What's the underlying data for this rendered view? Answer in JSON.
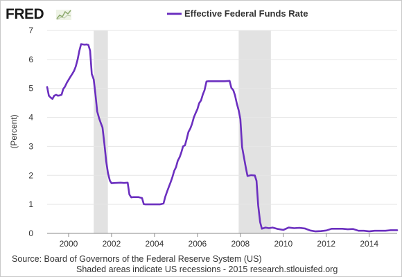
{
  "logo": {
    "text": "FRED",
    "icon": "line-chart-icon"
  },
  "legend": {
    "label": "Effective Federal Funds Rate",
    "color": "#6b2fbf"
  },
  "source_line1": "Source: Board of Governors of the Federal Reserve System (US)",
  "source_line2": "Shaded areas indicate US recessions - 2015 research.stlouisfed.org",
  "chart_data": {
    "type": "line",
    "title": "",
    "xlabel": "",
    "ylabel": "(Percent)",
    "xlim": [
      1999.0,
      2015.3
    ],
    "ylim": [
      0,
      7
    ],
    "x_ticks": [
      2000,
      2002,
      2004,
      2006,
      2008,
      2010,
      2012,
      2014
    ],
    "x_tick_labels": [
      "2000",
      "2002",
      "2004",
      "2006",
      "2008",
      "2010",
      "2012",
      "2014"
    ],
    "y_ticks": [
      0,
      1,
      2,
      3,
      4,
      5,
      6,
      7
    ],
    "y_tick_labels": [
      "0",
      "1",
      "2",
      "3",
      "4",
      "5",
      "6",
      "7"
    ],
    "grid": "horizontal",
    "legend_position": "top",
    "recessions": [
      [
        2001.17,
        2001.83
      ],
      [
        2007.92,
        2009.42
      ]
    ],
    "recession_color": "#e2e2e2",
    "series": [
      {
        "name": "Effective Federal Funds Rate",
        "color": "#6b2fbf",
        "x": [
          1999.0,
          1999.08,
          1999.17,
          1999.25,
          1999.33,
          1999.42,
          1999.5,
          1999.58,
          1999.67,
          1999.75,
          1999.83,
          1999.92,
          2000.0,
          2000.08,
          2000.17,
          2000.25,
          2000.33,
          2000.42,
          2000.5,
          2000.58,
          2000.67,
          2000.75,
          2000.83,
          2000.92,
          2001.0,
          2001.08,
          2001.17,
          2001.25,
          2001.33,
          2001.42,
          2001.5,
          2001.58,
          2001.67,
          2001.75,
          2001.83,
          2001.92,
          2002.0,
          2002.17,
          2002.42,
          2002.58,
          2002.75,
          2002.83,
          2002.92,
          2003.0,
          2003.25,
          2003.42,
          2003.5,
          2003.58,
          2003.75,
          2004.0,
          2004.25,
          2004.42,
          2004.5,
          2004.58,
          2004.67,
          2004.75,
          2004.83,
          2004.92,
          2005.0,
          2005.08,
          2005.17,
          2005.25,
          2005.33,
          2005.42,
          2005.5,
          2005.58,
          2005.67,
          2005.75,
          2005.83,
          2005.92,
          2006.0,
          2006.08,
          2006.17,
          2006.25,
          2006.33,
          2006.42,
          2006.5,
          2006.75,
          2007.0,
          2007.25,
          2007.5,
          2007.58,
          2007.67,
          2007.75,
          2007.83,
          2007.92,
          2008.0,
          2008.08,
          2008.17,
          2008.25,
          2008.33,
          2008.5,
          2008.67,
          2008.75,
          2008.83,
          2008.92,
          2009.0,
          2009.17,
          2009.33,
          2009.5,
          2009.75,
          2010.0,
          2010.25,
          2010.5,
          2010.75,
          2011.0,
          2011.25,
          2011.5,
          2011.75,
          2012.0,
          2012.25,
          2012.5,
          2012.75,
          2013.0,
          2013.25,
          2013.5,
          2013.75,
          2014.0,
          2014.25,
          2014.5,
          2014.75,
          2015.0,
          2015.17,
          2015.3
        ],
        "y": [
          5.05,
          4.75,
          4.68,
          4.64,
          4.75,
          4.78,
          4.75,
          4.76,
          4.78,
          4.98,
          5.06,
          5.2,
          5.3,
          5.4,
          5.5,
          5.6,
          5.75,
          6.0,
          6.3,
          6.53,
          6.52,
          6.51,
          6.52,
          6.5,
          6.3,
          5.5,
          5.31,
          4.8,
          4.21,
          3.97,
          3.8,
          3.65,
          3.07,
          2.49,
          2.09,
          1.82,
          1.73,
          1.74,
          1.75,
          1.74,
          1.75,
          1.34,
          1.24,
          1.25,
          1.25,
          1.22,
          1.01,
          1.0,
          1.0,
          1.0,
          1.0,
          1.03,
          1.26,
          1.43,
          1.61,
          1.76,
          1.93,
          2.16,
          2.28,
          2.5,
          2.63,
          2.79,
          3.0,
          3.04,
          3.26,
          3.5,
          3.62,
          3.78,
          4.0,
          4.16,
          4.29,
          4.49,
          4.59,
          4.79,
          4.94,
          5.24,
          5.25,
          5.25,
          5.25,
          5.25,
          5.26,
          5.02,
          4.94,
          4.76,
          4.49,
          4.24,
          3.94,
          2.98,
          2.61,
          2.28,
          1.98,
          2.01,
          2.0,
          1.81,
          0.97,
          0.39,
          0.16,
          0.2,
          0.18,
          0.2,
          0.15,
          0.12,
          0.2,
          0.18,
          0.19,
          0.17,
          0.1,
          0.07,
          0.08,
          0.1,
          0.16,
          0.16,
          0.16,
          0.14,
          0.15,
          0.09,
          0.09,
          0.07,
          0.09,
          0.09,
          0.09,
          0.11,
          0.11,
          0.11
        ]
      }
    ]
  }
}
